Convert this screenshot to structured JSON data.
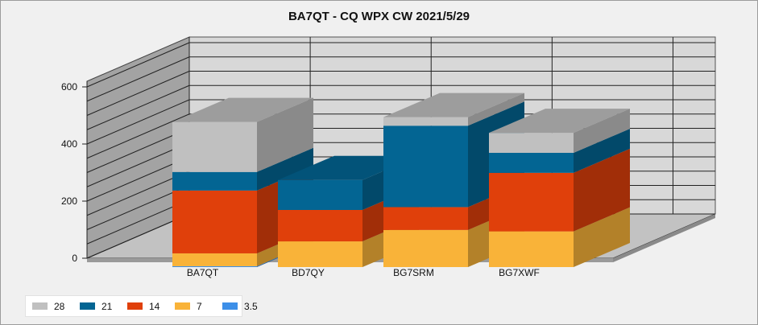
{
  "chart_data": {
    "type": "bar",
    "stacked": true,
    "three_d": true,
    "title": "BA7QT - CQ WPX  CW 2021/5/29",
    "xlabel": "",
    "ylabel": "",
    "categories": [
      "BA7QT",
      "BD7QY",
      "BG7SRM",
      "BG7XWF"
    ],
    "ylim": [
      0,
      600
    ],
    "yticks": [
      0,
      200,
      400,
      600
    ],
    "grid": true,
    "legend_position": "bottom-left",
    "series": [
      {
        "name": "3.5",
        "color": "#3d8fe8",
        "values": [
          3,
          0,
          0,
          0
        ]
      },
      {
        "name": "7",
        "color": "#f9b339",
        "values": [
          45,
          90,
          130,
          125
        ]
      },
      {
        "name": "14",
        "color": "#e0400b",
        "values": [
          220,
          110,
          80,
          205
        ]
      },
      {
        "name": "21",
        "color": "#036593",
        "values": [
          65,
          105,
          285,
          70
        ]
      },
      {
        "name": "28",
        "color": "#c0c0c0",
        "values": [
          175,
          0,
          30,
          70
        ]
      }
    ],
    "legend_order": [
      "28",
      "21",
      "14",
      "7",
      "3.5"
    ]
  }
}
